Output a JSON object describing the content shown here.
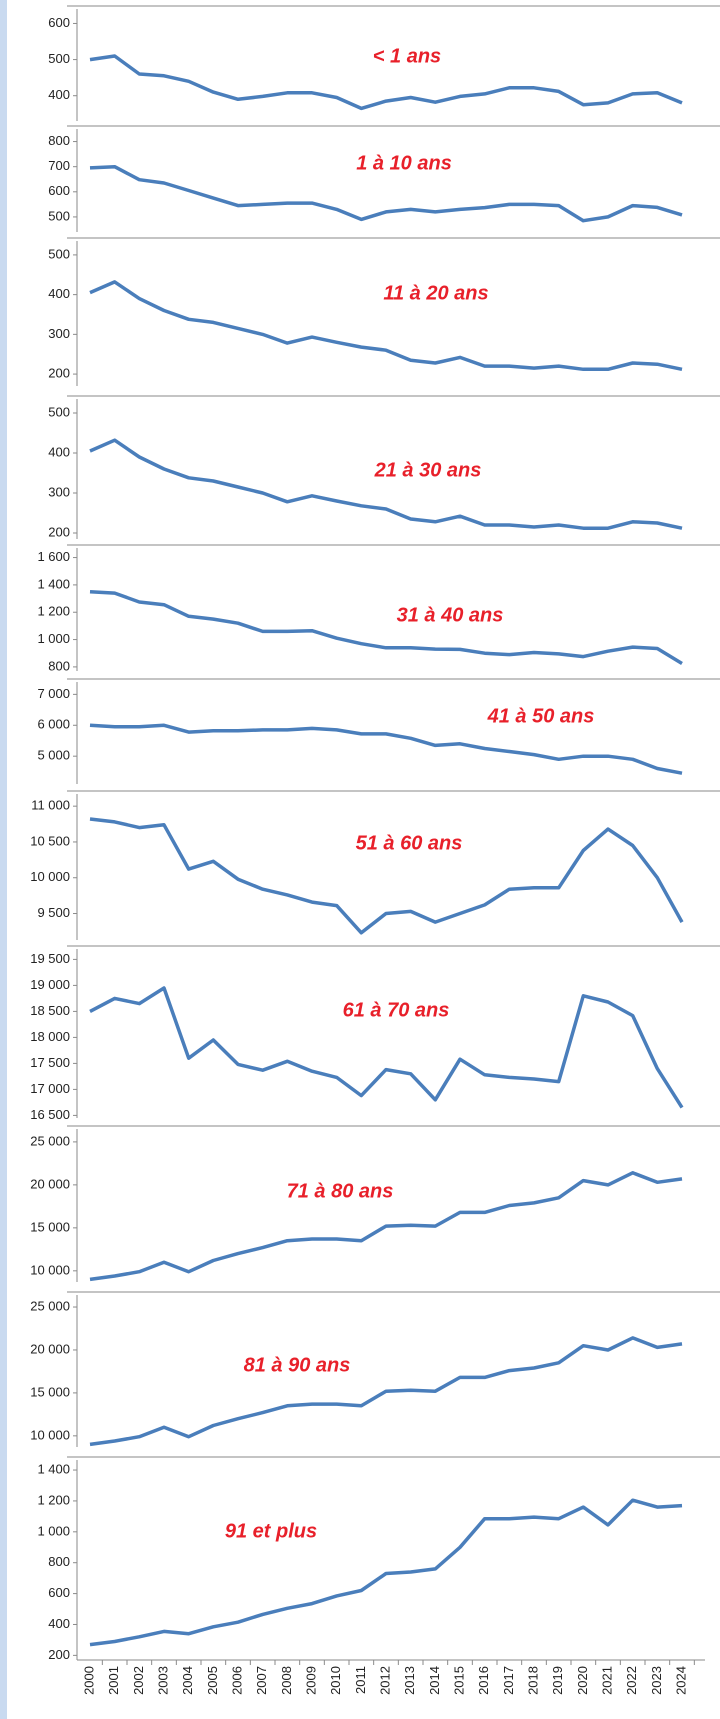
{
  "chart_data": [
    {
      "type": "line",
      "title": "< 1 ans",
      "color": "#4a7ebb",
      "ylim": [
        330,
        640
      ],
      "yticks": [
        400,
        500,
        600
      ],
      "values": [
        500,
        510,
        460,
        455,
        440,
        410,
        390,
        398,
        408,
        408,
        395,
        365,
        385,
        395,
        382,
        398,
        405,
        422,
        422,
        412,
        375,
        380,
        405,
        408,
        380
      ]
    },
    {
      "type": "line",
      "title": "1 à 10 ans",
      "color": "#4a7ebb",
      "ylim": [
        440,
        850
      ],
      "yticks": [
        500,
        600,
        700,
        800
      ],
      "values": [
        695,
        700,
        648,
        635,
        605,
        575,
        545,
        550,
        555,
        555,
        530,
        490,
        520,
        530,
        520,
        530,
        537,
        550,
        550,
        545,
        485,
        500,
        545,
        538,
        508
      ]
    },
    {
      "type": "line",
      "title": "11 à 20 ans",
      "color": "#4a7ebb",
      "ylim": [
        170,
        535
      ],
      "yticks": [
        200,
        300,
        400,
        500
      ],
      "values": [
        405,
        432,
        390,
        360,
        338,
        330,
        315,
        300,
        278,
        293,
        280,
        268,
        260,
        235,
        228,
        242,
        220,
        220,
        215,
        220,
        212,
        212,
        228,
        225,
        212
      ]
    },
    {
      "type": "line",
      "title": "21 à 30 ans",
      "color": "#4a7ebb",
      "ylim": [
        185,
        535
      ],
      "yticks": [
        200,
        300,
        400,
        500
      ],
      "values": [
        405,
        432,
        390,
        360,
        338,
        330,
        315,
        300,
        278,
        293,
        280,
        268,
        260,
        235,
        228,
        242,
        220,
        220,
        215,
        220,
        212,
        212,
        228,
        225,
        212
      ]
    },
    {
      "type": "line",
      "title": "31 à 40 ans",
      "color": "#4a7ebb",
      "ylim": [
        770,
        1670
      ],
      "yticks": [
        800,
        {
          "value": 1000,
          "label": "1 000"
        },
        {
          "value": 1200,
          "label": "1 200"
        },
        {
          "value": 1400,
          "label": "1 400"
        },
        {
          "value": 1600,
          "label": "1 600"
        }
      ],
      "values": [
        1350,
        1340,
        1275,
        1255,
        1170,
        1150,
        1120,
        1060,
        1060,
        1065,
        1010,
        970,
        940,
        940,
        930,
        928,
        900,
        890,
        905,
        895,
        875,
        915,
        945,
        935,
        825
      ]
    },
    {
      "type": "line",
      "title": "41 à 50 ans",
      "color": "#4a7ebb",
      "ylim": [
        4100,
        7400
      ],
      "yticks": [
        {
          "value": 5000,
          "label": "5 000"
        },
        {
          "value": 6000,
          "label": "6 000"
        },
        {
          "value": 7000,
          "label": "7 000"
        }
      ],
      "values": [
        6000,
        5950,
        5950,
        6000,
        5780,
        5820,
        5820,
        5850,
        5850,
        5900,
        5850,
        5720,
        5720,
        5580,
        5350,
        5400,
        5250,
        5150,
        5050,
        4900,
        5000,
        5000,
        4900,
        4600,
        4450
      ]
    },
    {
      "type": "line",
      "title": "51 à 60 ans",
      "color": "#4a7ebb",
      "ylim": [
        9130,
        11170
      ],
      "yticks": [
        {
          "value": 9500,
          "label": "9 500"
        },
        {
          "value": 10000,
          "label": "10 000"
        },
        {
          "value": 10500,
          "label": "10 500"
        },
        {
          "value": 11000,
          "label": "11 000"
        }
      ],
      "values": [
        10820,
        10780,
        10700,
        10740,
        10120,
        10230,
        9980,
        9840,
        9760,
        9660,
        9610,
        9230,
        9500,
        9530,
        9380,
        9500,
        9620,
        9840,
        9860,
        9860,
        10380,
        10680,
        10450,
        10000,
        9380
      ]
    },
    {
      "type": "line",
      "title": "61 à 70 ans",
      "color": "#4a7ebb",
      "ylim": [
        16450,
        19700
      ],
      "yticks": [
        {
          "value": 16500,
          "label": "16 500"
        },
        {
          "value": 17000,
          "label": "17 000"
        },
        {
          "value": 17500,
          "label": "17 500"
        },
        {
          "value": 18000,
          "label": "18 000"
        },
        {
          "value": 18500,
          "label": "18 500"
        },
        {
          "value": 19000,
          "label": "19 000"
        },
        {
          "value": 19500,
          "label": "19 500"
        }
      ],
      "values": [
        18500,
        18750,
        18650,
        18950,
        17600,
        17950,
        17480,
        17370,
        17540,
        17350,
        17230,
        16880,
        17380,
        17300,
        16800,
        17580,
        17280,
        17230,
        17200,
        17150,
        18800,
        18680,
        18420,
        17400,
        16650
      ]
    },
    {
      "type": "line",
      "title": "71 à 80 ans",
      "color": "#4a7ebb",
      "ylim": [
        8700,
        26500
      ],
      "yticks": [
        {
          "value": 10000,
          "label": "10 000"
        },
        {
          "value": 15000,
          "label": "15 000"
        },
        {
          "value": 20000,
          "label": "20 000"
        },
        {
          "value": 25000,
          "label": "25 000"
        }
      ],
      "values": [
        9000,
        9400,
        9900,
        11000,
        9900,
        11200,
        12000,
        12700,
        13500,
        13700,
        13700,
        13500,
        15200,
        15300,
        15200,
        16800,
        16800,
        17600,
        17900,
        18500,
        20500,
        20000,
        21400,
        20300,
        20700
      ]
    },
    {
      "type": "line",
      "title": "81 à 90 ans",
      "color": "#4a7ebb",
      "ylim": [
        8700,
        26400
      ],
      "yticks": [
        {
          "value": 10000,
          "label": "10 000"
        },
        {
          "value": 15000,
          "label": "15 000"
        },
        {
          "value": 20000,
          "label": "20 000"
        },
        {
          "value": 25000,
          "label": "25 000"
        }
      ],
      "values": [
        9000,
        9400,
        9900,
        11000,
        9900,
        11200,
        12000,
        12700,
        13500,
        13700,
        13700,
        13500,
        15200,
        15300,
        15200,
        16800,
        16800,
        17600,
        17900,
        18500,
        20500,
        20000,
        21400,
        20300,
        20700
      ]
    },
    {
      "type": "line",
      "title": "91 et plus",
      "color": "#4a7ebb",
      "ylim": [
        170,
        1465
      ],
      "yticks": [
        200,
        400,
        600,
        800,
        {
          "value": 1000,
          "label": "1 000"
        },
        {
          "value": 1200,
          "label": "1 200"
        },
        {
          "value": 1400,
          "label": "1 400"
        }
      ],
      "categories": [
        "2000",
        "2001",
        "2002",
        "2003",
        "2004",
        "2005",
        "2006",
        "2007",
        "2008",
        "2009",
        "2010",
        "2011",
        "2012",
        "2013",
        "2014",
        "2015",
        "2016",
        "2017",
        "2018",
        "2019",
        "2020",
        "2021",
        "2022",
        "2023",
        "2024"
      ],
      "values": [
        270,
        290,
        320,
        355,
        340,
        385,
        415,
        465,
        505,
        535,
        585,
        620,
        730,
        740,
        760,
        900,
        1085,
        1085,
        1095,
        1085,
        1160,
        1045,
        1205,
        1160,
        1170
      ]
    }
  ]
}
